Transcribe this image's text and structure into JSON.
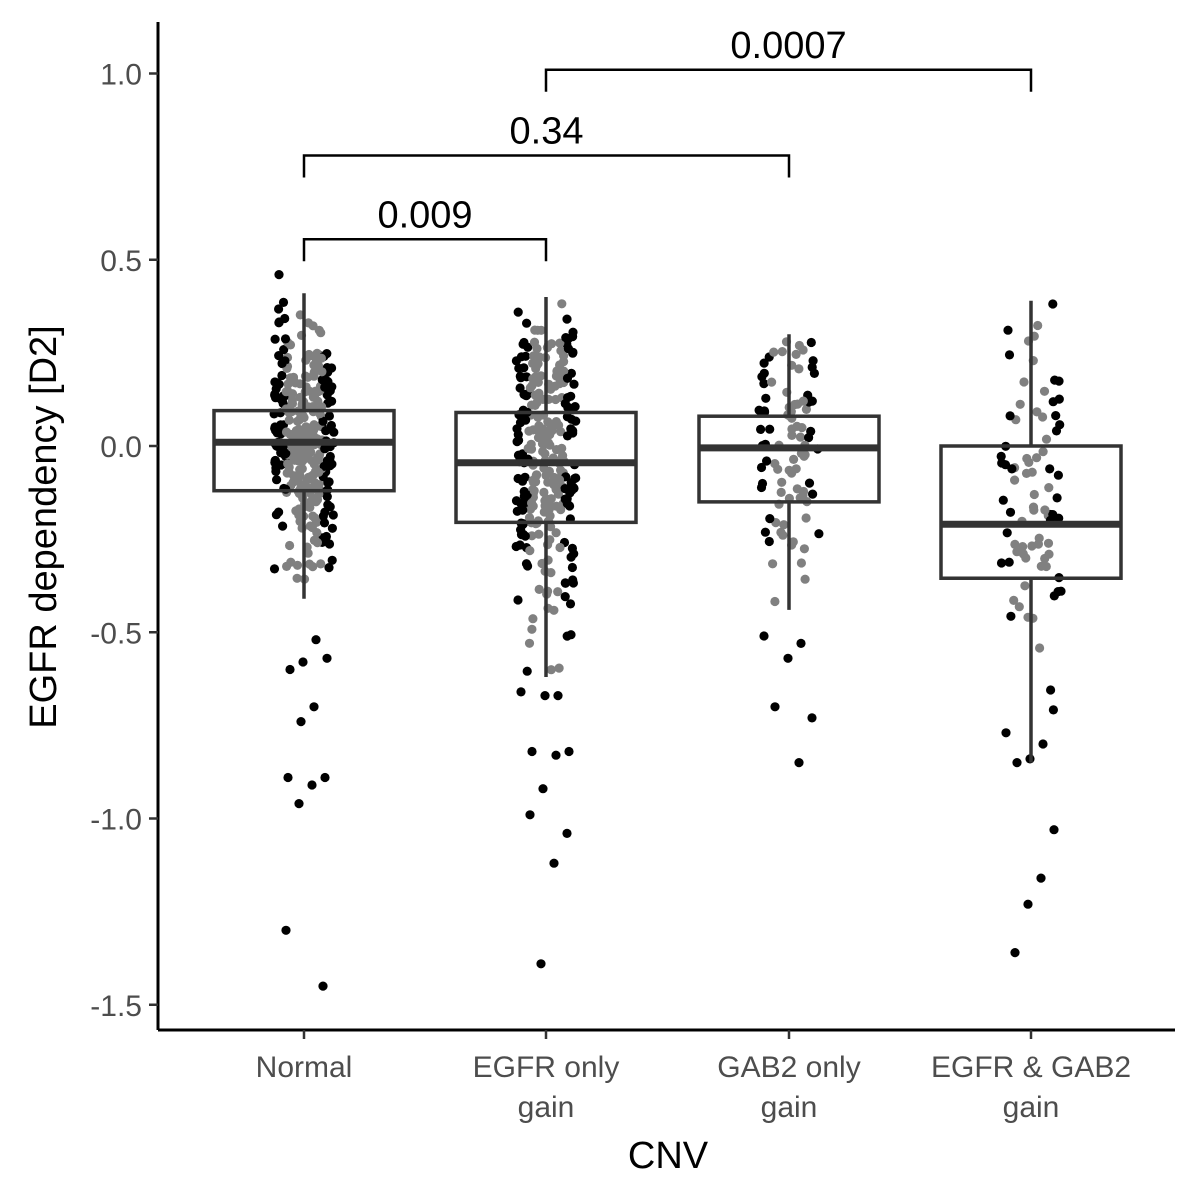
{
  "chart_data": {
    "type": "box",
    "xlabel": "CNV",
    "ylabel": "EGFR dependency [D2]",
    "ylim": [
      -1.55,
      1.1
    ],
    "yticks": [
      {
        "value": 1.0,
        "label": "1.0"
      },
      {
        "value": 0.5,
        "label": "0.5"
      },
      {
        "value": 0.0,
        "label": "0.0"
      },
      {
        "value": -0.5,
        "label": "-0.5"
      },
      {
        "value": -1.0,
        "label": "-1.0"
      },
      {
        "value": -1.5,
        "label": "-1.5"
      }
    ],
    "categories": [
      {
        "label_lines": [
          "Normal"
        ]
      },
      {
        "label_lines": [
          "EGFR only",
          "gain"
        ]
      },
      {
        "label_lines": [
          "GAB2 only",
          "gain"
        ]
      },
      {
        "label_lines": [
          "EGFR & GAB2",
          "gain"
        ]
      }
    ],
    "boxes": [
      {
        "q1": -0.12,
        "median": 0.01,
        "q3": 0.095,
        "whisker_low": -0.41,
        "whisker_high": 0.41
      },
      {
        "q1": -0.205,
        "median": -0.045,
        "q3": 0.09,
        "whisker_low": -0.62,
        "whisker_high": 0.4
      },
      {
        "q1": -0.15,
        "median": -0.005,
        "q3": 0.08,
        "whisker_low": -0.44,
        "whisker_high": 0.3
      },
      {
        "q1": -0.355,
        "median": -0.21,
        "q3": 0.0,
        "whisker_low": -0.85,
        "whisker_high": 0.39
      }
    ],
    "outliers": [
      [
        0.46,
        -0.52,
        -0.58,
        -0.6,
        -0.57,
        -0.7,
        -0.74,
        -0.89,
        -0.89,
        -0.91,
        -0.96,
        -1.3,
        -1.45
      ],
      [
        -0.66,
        -0.67,
        -0.67,
        -0.82,
        -0.82,
        -0.83,
        -0.92,
        -0.99,
        -1.04,
        -1.12,
        -1.39
      ],
      [
        -0.51,
        -0.53,
        -0.57,
        -0.7,
        -0.73,
        -0.85
      ],
      [
        -0.77,
        -0.8,
        -0.84,
        -0.85,
        -1.03,
        -1.16,
        -1.23,
        -1.36
      ]
    ],
    "comparisons": [
      {
        "from": 0,
        "to": 1,
        "label": "0.009",
        "y": 0.555
      },
      {
        "from": 0,
        "to": 2,
        "label": "0.34",
        "y": 0.78
      },
      {
        "from": 1,
        "to": 3,
        "label": "0.0007",
        "y": 1.01
      }
    ],
    "point_colors": {
      "outer": "#000000",
      "inner": "#808080"
    },
    "box_color": "#333333",
    "grid": false,
    "legend": "none"
  }
}
